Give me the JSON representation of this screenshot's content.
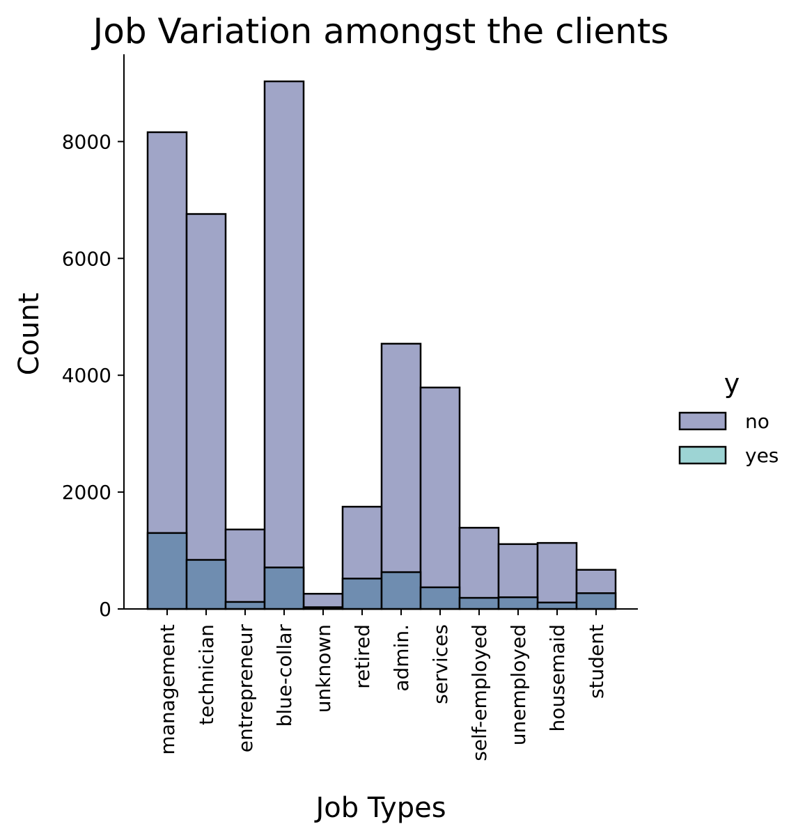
{
  "chart_data": {
    "type": "bar",
    "stacked": false,
    "overlaid": true,
    "title": "Job Variation amongst the clients",
    "xlabel": "Job Types",
    "ylabel": "Count",
    "ylim": [
      0,
      9500
    ],
    "yticks": [
      0,
      2000,
      4000,
      6000,
      8000
    ],
    "grid": false,
    "categories": [
      "management",
      "technician",
      "entrepreneur",
      "blue-collar",
      "unknown",
      "retired",
      "admin.",
      "services",
      "self-employed",
      "unemployed",
      "housemaid",
      "student"
    ],
    "series": [
      {
        "name": "no",
        "color": "#a0a5c7",
        "values": [
          8160,
          6760,
          1360,
          9030,
          260,
          1750,
          4540,
          3790,
          1390,
          1110,
          1130,
          670
        ]
      },
      {
        "name": "yes",
        "color": "#9dd4d4",
        "values": [
          1300,
          840,
          120,
          710,
          30,
          520,
          630,
          370,
          190,
          200,
          110,
          270
        ]
      }
    ],
    "overlap_color": "#6f8db0",
    "legend": {
      "title": "y",
      "placement": "right",
      "entries": [
        "no",
        "yes"
      ]
    }
  }
}
